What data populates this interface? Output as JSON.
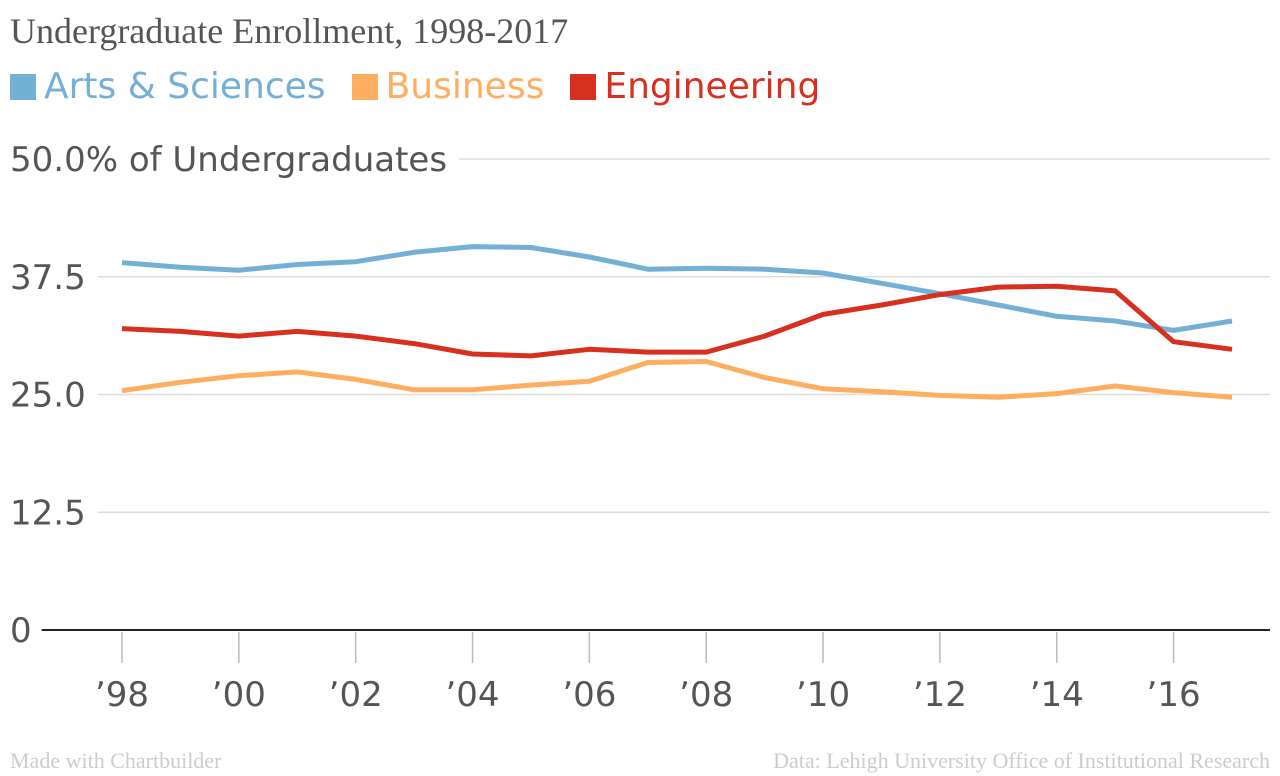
{
  "colors": {
    "arts": "#74afd5",
    "business": "#fdae61",
    "engineering": "#d7301f",
    "grid": "#dddddd",
    "axis": "#222222",
    "text": "#555555"
  },
  "footer": {
    "left": "Made with Chartbuilder",
    "right": "Data: Lehigh University Office of Institutional Research"
  },
  "chart_data": {
    "type": "line",
    "title": "Undergraduate Enrollment, 1998-2017",
    "ylabel": "% of Undergraduates",
    "x": [
      1998,
      1999,
      2000,
      2001,
      2002,
      2003,
      2004,
      2005,
      2006,
      2007,
      2008,
      2009,
      2010,
      2011,
      2012,
      2013,
      2014,
      2015,
      2016,
      2017
    ],
    "xlim": [
      1998,
      2017
    ],
    "ylim": [
      0,
      50
    ],
    "y_ticks": [
      0,
      12.5,
      25,
      37.5,
      50
    ],
    "y_tick_labels": [
      "0",
      "12.5",
      "25.0",
      "37.5",
      "50.0% of Undergraduates"
    ],
    "x_ticks": [
      1998,
      2000,
      2002,
      2004,
      2006,
      2008,
      2010,
      2012,
      2014,
      2016
    ],
    "x_tick_labels": [
      "’98",
      "’00",
      "’02",
      "’04",
      "’06",
      "’08",
      "’10",
      "’12",
      "’14",
      "’16"
    ],
    "grid": true,
    "legend_position": "top-left",
    "series": [
      {
        "name": "Arts & Sciences",
        "color": "#74afd5",
        "values": [
          39.0,
          38.5,
          38.2,
          38.8,
          39.1,
          40.1,
          40.7,
          40.6,
          39.6,
          38.3,
          38.4,
          38.3,
          37.9,
          36.8,
          35.7,
          34.5,
          33.3,
          32.8,
          31.8,
          32.8
        ]
      },
      {
        "name": "Business",
        "color": "#fdae61",
        "values": [
          25.4,
          26.3,
          27.0,
          27.4,
          26.6,
          25.5,
          25.5,
          26.0,
          26.4,
          28.4,
          28.5,
          26.8,
          25.6,
          25.3,
          24.9,
          24.7,
          25.1,
          25.9,
          25.2,
          24.7
        ]
      },
      {
        "name": "Engineering",
        "color": "#d7301f",
        "values": [
          32.0,
          31.7,
          31.2,
          31.7,
          31.2,
          30.4,
          29.3,
          29.1,
          29.8,
          29.5,
          29.5,
          31.2,
          33.5,
          34.5,
          35.6,
          36.4,
          36.5,
          36.0,
          30.6,
          29.8
        ]
      }
    ]
  }
}
